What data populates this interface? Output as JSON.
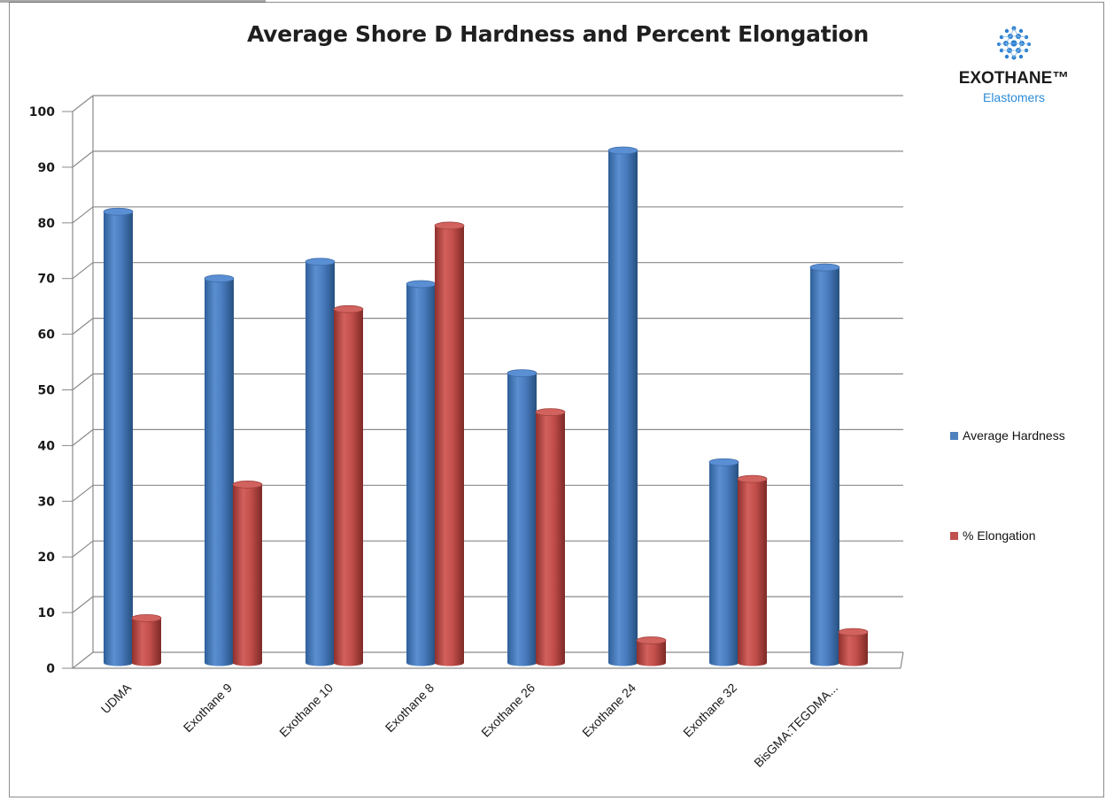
{
  "chart_data": {
    "type": "bar",
    "title": "Average Shore D Hardness and Percent Elongation",
    "categories": [
      "UDMA",
      "Exothane 9",
      "Exothane 10",
      "Exothane 8",
      "Exothane 26",
      "Exothane 24",
      "Exothane 32",
      "BisGMA:TEGDMA..."
    ],
    "series": [
      {
        "name": "Average Hardness",
        "color": "#4f81bd",
        "values": [
          82,
          70,
          73,
          69,
          53,
          93,
          37,
          72
        ]
      },
      {
        "name": "% Elongation",
        "color": "#c0504d",
        "values": [
          9,
          33,
          64.5,
          79.5,
          46,
          5,
          34,
          6.5
        ]
      }
    ],
    "ylim": [
      0,
      100
    ],
    "yticks": [
      0,
      10,
      20,
      30,
      40,
      50,
      60,
      70,
      80,
      90,
      100
    ],
    "grid": true,
    "legend_position": "right",
    "xlabel": "",
    "ylabel": ""
  },
  "logo": {
    "name": "EXOTHANE™",
    "subtitle": "Elastomers"
  }
}
